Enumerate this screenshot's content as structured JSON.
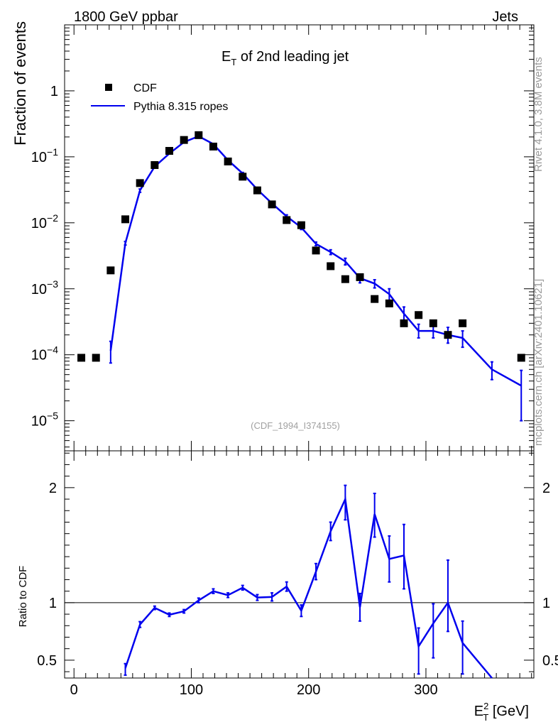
{
  "header": {
    "left": "1800 GeV ppbar",
    "right": "Jets"
  },
  "side_text": {
    "rivet": "Rivet 4.1.0,  3.8M events",
    "mcplots": "mcplots.cern.ch [arXiv:2401.10621]"
  },
  "colors": {
    "mc": "#0000ee",
    "data": "#000000",
    "side_text": "#9a9a9a",
    "watermark": "#a0a0a0"
  },
  "chart_data": [
    {
      "type": "scatter",
      "title_main": "E",
      "title_sub": "T",
      "title_rest": " of 2nd leading jet",
      "ylabel": "Fraction of events",
      "watermark": "(CDF_1994_I374155)",
      "yscale": "log",
      "xlim": [
        -8,
        392
      ],
      "ylim": [
        3.5e-06,
        10
      ],
      "ytick_labels": [
        {
          "base": "1",
          "exp": ""
        },
        {
          "base": "10",
          "exp": "−1"
        },
        {
          "base": "10",
          "exp": "−2"
        },
        {
          "base": "10",
          "exp": "−3"
        },
        {
          "base": "10",
          "exp": "−4"
        },
        {
          "base": "10",
          "exp": "−5"
        }
      ],
      "legend": {
        "position": "top-left",
        "entries": [
          "CDF",
          "Pythia 8.315 ropes"
        ]
      },
      "series": [
        {
          "name": "CDF",
          "style": "markers",
          "x": [
            6.25,
            18.75,
            31.25,
            43.75,
            56.25,
            68.75,
            81.25,
            93.75,
            106.25,
            118.75,
            131.25,
            143.75,
            156.25,
            168.75,
            181.25,
            193.75,
            206.25,
            218.75,
            231.25,
            243.75,
            256.25,
            268.75,
            281.25,
            293.75,
            306.25,
            318.75,
            331.25,
            381.25
          ],
          "y": [
            9e-05,
            9e-05,
            0.0019,
            0.0113,
            0.04,
            0.075,
            0.123,
            0.18,
            0.213,
            0.143,
            0.085,
            0.05,
            0.031,
            0.019,
            0.011,
            0.0092,
            0.0038,
            0.0022,
            0.0014,
            0.0015,
            0.0007,
            0.0006,
            0.0003,
            0.0004,
            0.0003,
            0.0002,
            0.0003,
            9e-05
          ]
        },
        {
          "name": "Pythia 8.315 ropes",
          "style": "line",
          "x": [
            31.25,
            43.75,
            56.25,
            68.75,
            81.25,
            93.75,
            106.25,
            118.75,
            131.25,
            143.75,
            156.25,
            168.75,
            181.25,
            193.75,
            206.25,
            218.75,
            231.25,
            243.75,
            256.25,
            268.75,
            281.25,
            293.75,
            306.25,
            318.75,
            331.25,
            356.25,
            381.25
          ],
          "y": [
            0.000115,
            0.0049,
            0.031,
            0.071,
            0.112,
            0.167,
            0.205,
            0.156,
            0.089,
            0.056,
            0.032,
            0.0197,
            0.0125,
            0.0085,
            0.0048,
            0.0036,
            0.0026,
            0.00145,
            0.0012,
            0.00083,
            0.00042,
            0.00023,
            0.00023,
            0.0002,
            0.00018,
            6e-05,
            3.4e-05
          ],
          "err_lo": [
            7.5e-05,
            0.0046,
            0.029,
            0.069,
            0.11,
            0.164,
            0.202,
            0.153,
            0.087,
            0.054,
            0.0305,
            0.0188,
            0.0118,
            0.0079,
            0.0045,
            0.0033,
            0.0023,
            0.00123,
            0.00103,
            0.00066,
            0.00032,
            0.00018,
            0.00018,
            0.00015,
            0.00013,
            4.2e-05,
            1e-05
          ],
          "err_hi": [
            0.00016,
            0.0052,
            0.0325,
            0.073,
            0.114,
            0.17,
            0.208,
            0.159,
            0.091,
            0.058,
            0.0335,
            0.0206,
            0.0132,
            0.0091,
            0.0051,
            0.0039,
            0.0029,
            0.00167,
            0.00137,
            0.001,
            0.00053,
            0.00029,
            0.00029,
            0.00026,
            0.00023,
            7.8e-05,
            5.8e-05
          ]
        }
      ]
    },
    {
      "type": "line",
      "ylabel": "Ratio to CDF",
      "xlabel_main": "E",
      "xlabel_sup": "2",
      "xlabel_sub": "T",
      "xlabel_rest": " [GeV]",
      "xlim": [
        -8,
        392
      ],
      "ylim": [
        0.345,
        2.32
      ],
      "reference_line": 1,
      "yticks": [
        0.5,
        1,
        2
      ],
      "ytick_labels": [
        "0.5",
        "1",
        "2"
      ],
      "xticks": [
        0,
        100,
        200,
        300
      ],
      "xtick_labels": [
        "0",
        "100",
        "200",
        "300"
      ],
      "series": [
        {
          "name": "Pythia 8.315 ropes",
          "x": [
            43.75,
            56.25,
            68.75,
            81.25,
            93.75,
            106.25,
            118.75,
            131.25,
            143.75,
            156.25,
            168.75,
            181.25,
            193.75,
            206.25,
            218.75,
            231.25,
            243.75,
            256.25,
            268.75,
            281.25,
            293.75,
            306.25,
            318.75,
            331.25,
            356.25
          ],
          "y": [
            0.43,
            0.81,
            0.955,
            0.895,
            0.925,
            1.02,
            1.1,
            1.065,
            1.13,
            1.045,
            1.05,
            1.14,
            0.93,
            1.27,
            1.62,
            1.9,
            0.96,
            1.77,
            1.38,
            1.41,
            0.62,
            0.82,
            1.0,
            0.65,
            0.34
          ],
          "err_lo": [
            0.37,
            0.785,
            0.94,
            0.88,
            0.91,
            1.0,
            1.08,
            1.045,
            1.11,
            1.02,
            1.015,
            1.1,
            0.88,
            1.2,
            1.54,
            1.72,
            0.84,
            1.57,
            1.18,
            1.12,
            0.38,
            0.52,
            0.75,
            0.38,
            0.34
          ],
          "err_hi": [
            0.47,
            0.835,
            0.97,
            0.91,
            0.94,
            1.04,
            1.12,
            1.085,
            1.15,
            1.07,
            1.085,
            1.18,
            0.98,
            1.34,
            1.7,
            2.02,
            1.08,
            1.95,
            1.58,
            1.68,
            0.78,
            0.99,
            1.37,
            0.84,
            0.34
          ]
        }
      ]
    }
  ]
}
